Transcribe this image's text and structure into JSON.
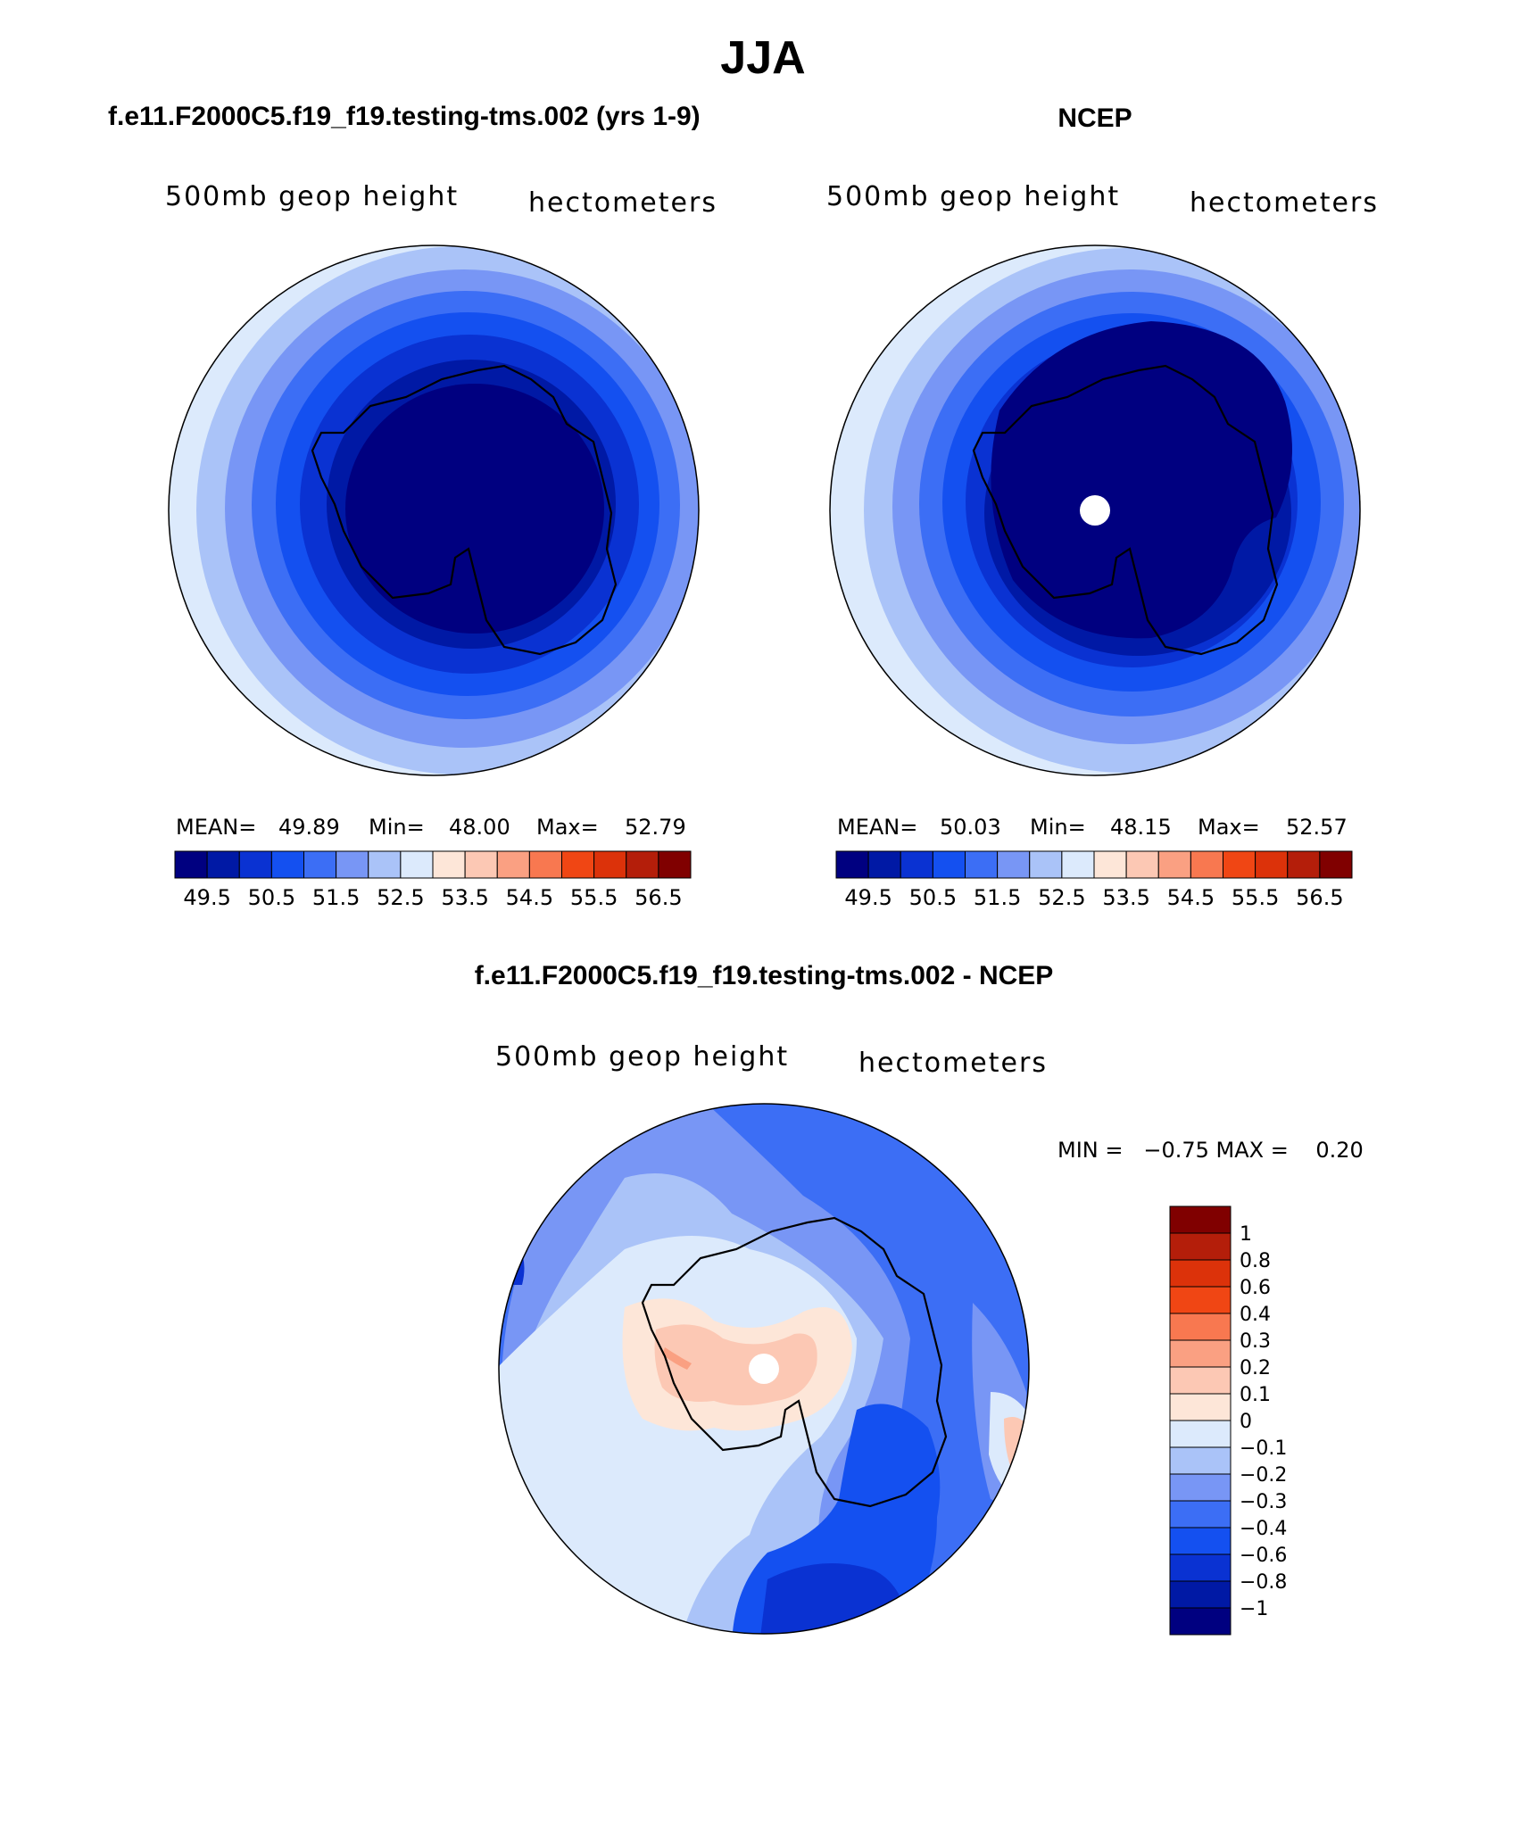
{
  "page_title": "JJA",
  "palette": [
    "#000080",
    "#0019a5",
    "#0a32d2",
    "#1450f0",
    "#3c6ef5",
    "#7896f5",
    "#aac3f8",
    "#dceafc",
    "#fde6d8",
    "#fcc8b4",
    "#faa082",
    "#f87850",
    "#f04614",
    "#dc320a",
    "#b41e0a",
    "#800000"
  ],
  "panels": [
    {
      "title": "f.e11.F2000C5.f19_f19.testing-tms.002 (yrs 1-9)",
      "left_label": "500mb geop height",
      "right_label": "hectometers",
      "stats": {
        "mean_label": "MEAN=",
        "mean": "49.89",
        "min_label": "Min=",
        "min": "48.00",
        "max_label": "Max=",
        "max": "52.79"
      },
      "colorbar_labels": [
        "49.5",
        "50.5",
        "51.5",
        "52.5",
        "53.5",
        "54.5",
        "55.5",
        "56.5"
      ],
      "contour_levels_hm": [
        49.5,
        50.5,
        51.5,
        52.5,
        53.5,
        54.5,
        55.5,
        56.5
      ],
      "shows_pole_hole": false
    },
    {
      "title": "NCEP",
      "left_label": "500mb geop height",
      "right_label": "hectometers",
      "stats": {
        "mean_label": "MEAN=",
        "mean": "50.03",
        "min_label": "Min=",
        "min": "48.15",
        "max_label": "Max=",
        "max": "52.57"
      },
      "colorbar_labels": [
        "49.5",
        "50.5",
        "51.5",
        "52.5",
        "53.5",
        "54.5",
        "55.5",
        "56.5"
      ],
      "contour_levels_hm": [
        49.5,
        50.5,
        51.5,
        52.5,
        53.5,
        54.5,
        55.5,
        56.5
      ],
      "shows_pole_hole": true
    }
  ],
  "diff_panel": {
    "title": "f.e11.F2000C5.f19_f19.testing-tms.002 - NCEP",
    "left_label": "500mb geop height",
    "right_label": "hectometers",
    "minmax_text": "MIN =   −0.75 MAX =    0.20",
    "colorbar_labels": [
      "1",
      "0.8",
      "0.6",
      "0.4",
      "0.3",
      "0.2",
      "0.1",
      "0",
      "−0.1",
      "−0.2",
      "−0.3",
      "−0.4",
      "−0.6",
      "−0.8",
      "−1"
    ],
    "colorbar_colors": [
      "#800000",
      "#b41e0a",
      "#dc320a",
      "#f04614",
      "#f87850",
      "#faa082",
      "#fcc8b4",
      "#fde6d8",
      "#dceafc",
      "#aac3f8",
      "#7896f5",
      "#3c6ef5",
      "#1450f0",
      "#0a32d2",
      "#0019a5",
      "#000080"
    ],
    "shows_pole_hole": true
  }
}
